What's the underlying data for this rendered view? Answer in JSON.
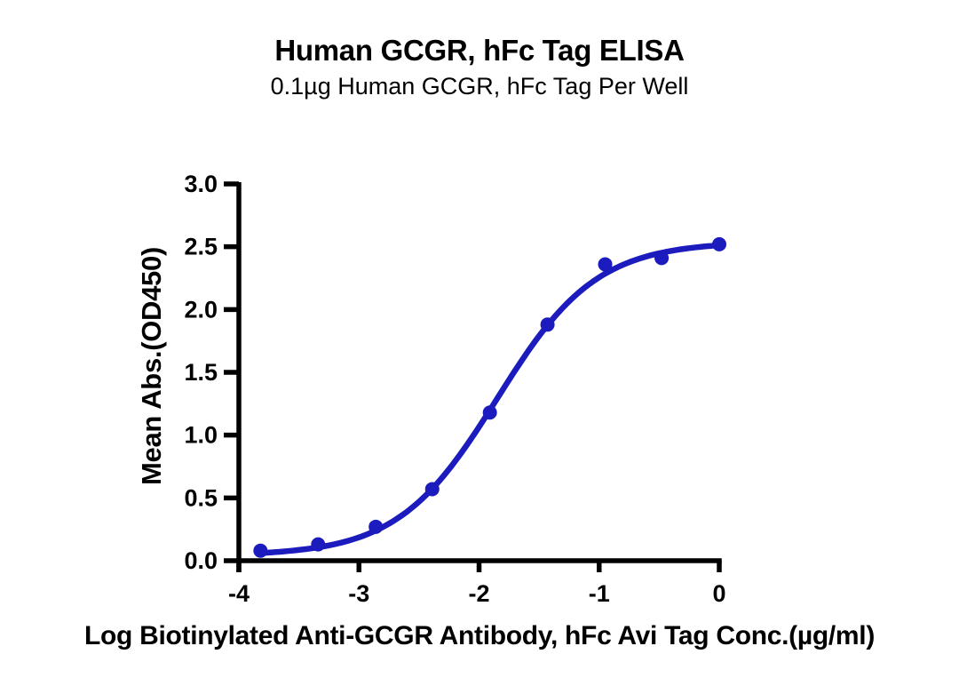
{
  "header": {
    "title": "Human GCGR, hFc Tag ELISA",
    "subtitle": "0.1µg Human GCGR, hFc Tag Per Well"
  },
  "chart_data": {
    "type": "scatter",
    "title": "Human GCGR, hFc Tag ELISA",
    "subtitle": "0.1µg Human GCGR, hFc Tag Per Well",
    "xlabel": "Log Biotinylated Anti-GCGR Antibody, hFc Avi Tag Conc.(µg/ml)",
    "ylabel": "Mean Abs.(OD450)",
    "xlim": [
      -4,
      0.03
    ],
    "ylim": [
      0,
      3
    ],
    "xticks": [
      -4,
      -3,
      -2,
      -1,
      0
    ],
    "xtick_labels": [
      "-4",
      "-3",
      "-2",
      "-1",
      "0"
    ],
    "yticks": [
      0,
      0.5,
      1,
      1.5,
      2,
      2.5,
      3
    ],
    "ytick_labels": [
      "0.0",
      "0.5",
      "1.0",
      "1.5",
      "2.0",
      "2.5",
      "3.0"
    ],
    "grid": false,
    "legend_position": "none",
    "colors": {
      "series": "#1c1cbe",
      "axis": "#000000",
      "text": "#000000",
      "background": "#ffffff"
    },
    "series": [
      {
        "marker": "circle",
        "color": "#1c1cbe",
        "points": [
          {
            "x": -3.82,
            "y": 0.08
          },
          {
            "x": -3.34,
            "y": 0.13
          },
          {
            "x": -2.86,
            "y": 0.27
          },
          {
            "x": -2.39,
            "y": 0.57
          },
          {
            "x": -1.91,
            "y": 1.18
          },
          {
            "x": -1.43,
            "y": 1.88
          },
          {
            "x": -0.95,
            "y": 2.36
          },
          {
            "x": -0.48,
            "y": 2.41
          },
          {
            "x": 0.0,
            "y": 2.52
          }
        ],
        "fit_curve": {
          "model": "4PL-sigmoid",
          "bottom": 0.04,
          "top": 2.54,
          "logEC50": -1.85,
          "hillslope": 1.05,
          "x_range": [
            -3.82,
            0.0
          ]
        }
      }
    ]
  }
}
